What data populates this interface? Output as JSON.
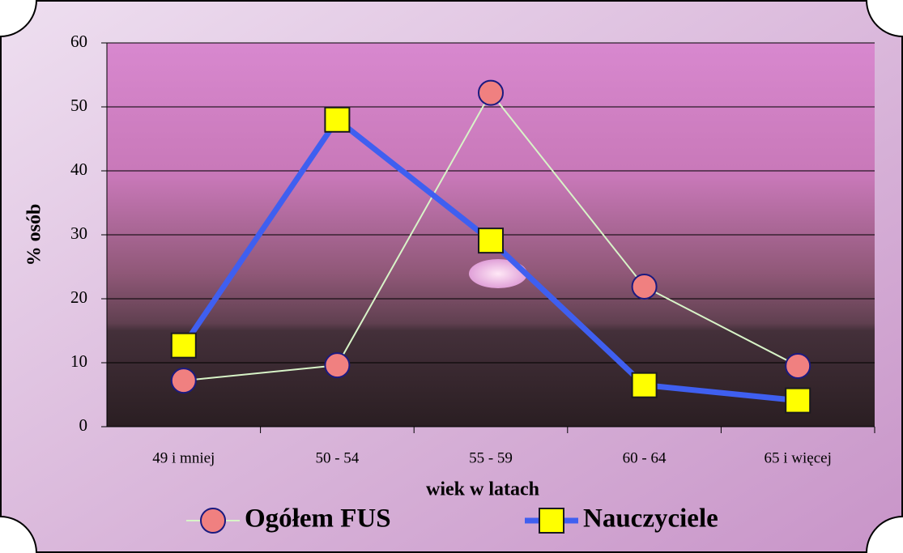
{
  "chart_data": {
    "type": "line",
    "x_label": "wiek w latach",
    "y_label": "% osób",
    "categories": [
      "49 i mniej",
      "50 - 54",
      "55 - 59",
      "60 - 64",
      "65  i więcej"
    ],
    "series": [
      {
        "name": "Ogółem FUS",
        "color": "#d8f4c8",
        "marker": "circle",
        "marker_color": "#f08080",
        "values": [
          7.2,
          9.6,
          52.2,
          21.9,
          9.5
        ]
      },
      {
        "name": "Nauczyciele",
        "color": "#3f5ff0",
        "marker": "square",
        "marker_color": "#ffff00",
        "values": [
          12.7,
          48,
          29.1,
          6.5,
          4.1
        ]
      }
    ],
    "ylim": [
      0,
      60
    ],
    "yticks": [
      0,
      10,
      20,
      30,
      40,
      50,
      60
    ],
    "grid": true
  }
}
